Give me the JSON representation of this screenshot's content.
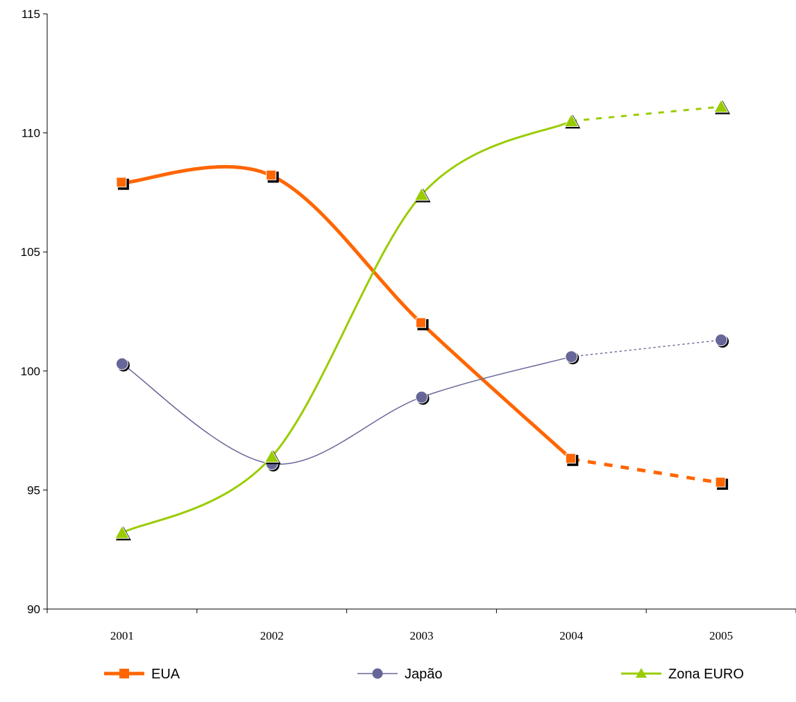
{
  "chart_data": {
    "type": "line",
    "categories": [
      "2001",
      "2002",
      "2003",
      "2004",
      "2005"
    ],
    "ylim": [
      90,
      115
    ],
    "yticks": [
      "90",
      "95",
      "100",
      "105",
      "110",
      "115"
    ],
    "xlabel": "",
    "ylabel": "",
    "title": "",
    "grid": false,
    "legend_position": "bottom",
    "projected_from": "2004",
    "series": [
      {
        "name": "EUA",
        "values": [
          107.9,
          108.2,
          102.0,
          96.3,
          95.3
        ],
        "color": "#ff6600",
        "marker": "square",
        "style": "thick"
      },
      {
        "name": "Japão",
        "values": [
          100.3,
          96.1,
          98.9,
          100.6,
          101.3
        ],
        "color": "#666699",
        "marker": "circle",
        "style": "thin"
      },
      {
        "name": "Zona EURO",
        "values": [
          93.2,
          96.4,
          107.4,
          110.5,
          111.1
        ],
        "color": "#99cc00",
        "marker": "triangle",
        "style": "medium"
      }
    ]
  }
}
